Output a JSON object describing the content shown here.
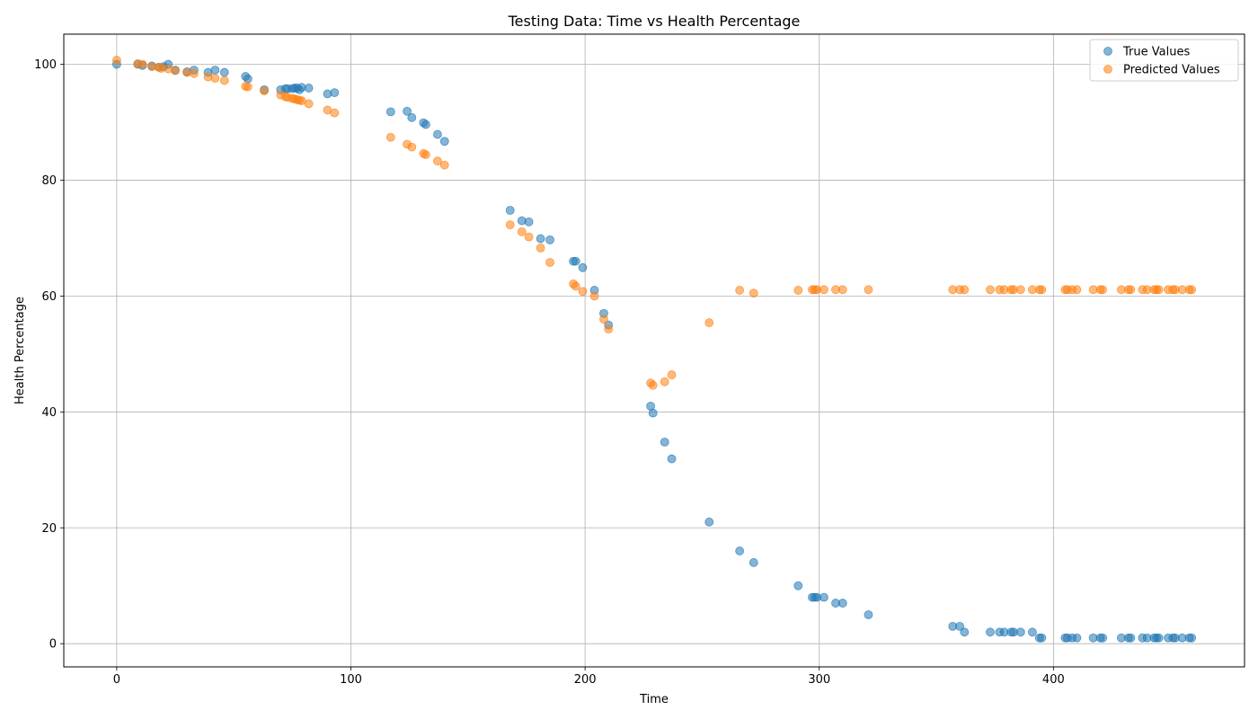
{
  "chart_data": {
    "type": "scatter",
    "title": "Testing Data: Time vs Health Percentage",
    "xlabel": "Time",
    "ylabel": "Health Percentage",
    "xlim": [
      -22.6,
      481.6
    ],
    "ylim": [
      -4,
      105.2
    ],
    "xticks": [
      0,
      100,
      200,
      300,
      400
    ],
    "yticks": [
      0,
      20,
      40,
      60,
      80,
      100
    ],
    "grid": true,
    "legend_position": "top-right",
    "series": [
      {
        "name": "True Values",
        "color": "#1f77b4",
        "points": [
          [
            0,
            100
          ],
          [
            9,
            100
          ],
          [
            11,
            99.8
          ],
          [
            15,
            99.7
          ],
          [
            18,
            99.5
          ],
          [
            20,
            99.6
          ],
          [
            22,
            100
          ],
          [
            25,
            99
          ],
          [
            30,
            98.7
          ],
          [
            33,
            99
          ],
          [
            39,
            98.6
          ],
          [
            42,
            99
          ],
          [
            46,
            98.6
          ],
          [
            55,
            97.9
          ],
          [
            56,
            97.5
          ],
          [
            63,
            95.6
          ],
          [
            70,
            95.6
          ],
          [
            72,
            95.8
          ],
          [
            73,
            95.8
          ],
          [
            75,
            95.8
          ],
          [
            76,
            95.9
          ],
          [
            77,
            95.9
          ],
          [
            78,
            95.6
          ],
          [
            79,
            96
          ],
          [
            82,
            95.9
          ],
          [
            90,
            94.9
          ],
          [
            93,
            95.1
          ],
          [
            117,
            91.8
          ],
          [
            124,
            91.9
          ],
          [
            126,
            90.8
          ],
          [
            131,
            89.9
          ],
          [
            132,
            89.6
          ],
          [
            137,
            87.9
          ],
          [
            140,
            86.7
          ],
          [
            168,
            74.8
          ],
          [
            173,
            73
          ],
          [
            176,
            72.8
          ],
          [
            181,
            69.9
          ],
          [
            185,
            69.7
          ],
          [
            195,
            66
          ],
          [
            196,
            66
          ],
          [
            199,
            64.9
          ],
          [
            204,
            61
          ],
          [
            208,
            57
          ],
          [
            210,
            55
          ],
          [
            228,
            41
          ],
          [
            229,
            39.8
          ],
          [
            234,
            34.8
          ],
          [
            237,
            31.9
          ],
          [
            253,
            21
          ],
          [
            266,
            16
          ],
          [
            272,
            14
          ],
          [
            291,
            10
          ],
          [
            297,
            8
          ],
          [
            298,
            8
          ],
          [
            299,
            8
          ],
          [
            302,
            8
          ],
          [
            307,
            7
          ],
          [
            310,
            7
          ],
          [
            321,
            5
          ],
          [
            357,
            3
          ],
          [
            360,
            3
          ],
          [
            362,
            2
          ],
          [
            373,
            2
          ],
          [
            377,
            2
          ],
          [
            379,
            2
          ],
          [
            382,
            2
          ],
          [
            383,
            2
          ],
          [
            386,
            2
          ],
          [
            391,
            2
          ],
          [
            394,
            1
          ],
          [
            395,
            1
          ],
          [
            405,
            1
          ],
          [
            406,
            1
          ],
          [
            408,
            1
          ],
          [
            410,
            1
          ],
          [
            417,
            1
          ],
          [
            420,
            1
          ],
          [
            421,
            1
          ],
          [
            429,
            1
          ],
          [
            432,
            1
          ],
          [
            433,
            1
          ],
          [
            438,
            1
          ],
          [
            440,
            1
          ],
          [
            443,
            1
          ],
          [
            444,
            1
          ],
          [
            445,
            1
          ],
          [
            449,
            1
          ],
          [
            451,
            1
          ],
          [
            452,
            1
          ],
          [
            455,
            1
          ],
          [
            458,
            1
          ],
          [
            459,
            1
          ]
        ]
      },
      {
        "name": "Predicted Values",
        "color": "#ff7f0e",
        "points": [
          [
            0,
            100.7
          ],
          [
            9,
            100.1
          ],
          [
            11,
            100
          ],
          [
            15,
            99.6
          ],
          [
            18,
            99.5
          ],
          [
            19,
            99.3
          ],
          [
            22,
            99.2
          ],
          [
            25,
            98.9
          ],
          [
            30,
            98.6
          ],
          [
            33,
            98.4
          ],
          [
            39,
            97.8
          ],
          [
            42,
            97.6
          ],
          [
            46,
            97.2
          ],
          [
            55,
            96.2
          ],
          [
            56,
            96.1
          ],
          [
            63,
            95.4
          ],
          [
            70,
            94.7
          ],
          [
            72,
            94.4
          ],
          [
            73,
            94.3
          ],
          [
            75,
            94.1
          ],
          [
            76,
            94
          ],
          [
            77,
            93.9
          ],
          [
            78,
            93.8
          ],
          [
            79,
            93.7
          ],
          [
            82,
            93.2
          ],
          [
            90,
            92.1
          ],
          [
            93,
            91.6
          ],
          [
            117,
            87.4
          ],
          [
            124,
            86.2
          ],
          [
            126,
            85.7
          ],
          [
            131,
            84.6
          ],
          [
            132,
            84.4
          ],
          [
            137,
            83.3
          ],
          [
            140,
            82.6
          ],
          [
            168,
            72.3
          ],
          [
            173,
            71.1
          ],
          [
            176,
            70.2
          ],
          [
            181,
            68.3
          ],
          [
            185,
            65.8
          ],
          [
            195,
            62.1
          ],
          [
            196,
            61.7
          ],
          [
            199,
            60.8
          ],
          [
            204,
            60
          ],
          [
            208,
            56
          ],
          [
            210,
            54.3
          ],
          [
            228,
            45
          ],
          [
            229,
            44.6
          ],
          [
            234,
            45.2
          ],
          [
            237,
            46.4
          ],
          [
            253,
            55.4
          ],
          [
            266,
            61
          ],
          [
            272,
            60.5
          ],
          [
            291,
            61
          ],
          [
            297,
            61.1
          ],
          [
            298,
            61.1
          ],
          [
            299,
            61.1
          ],
          [
            302,
            61.1
          ],
          [
            307,
            61.1
          ],
          [
            310,
            61.1
          ],
          [
            321,
            61.1
          ],
          [
            357,
            61.1
          ],
          [
            360,
            61.1
          ],
          [
            362,
            61.1
          ],
          [
            373,
            61.1
          ],
          [
            377,
            61.1
          ],
          [
            379,
            61.1
          ],
          [
            382,
            61.1
          ],
          [
            383,
            61.1
          ],
          [
            386,
            61.1
          ],
          [
            391,
            61.1
          ],
          [
            394,
            61.1
          ],
          [
            395,
            61.1
          ],
          [
            405,
            61.1
          ],
          [
            406,
            61.1
          ],
          [
            408,
            61.1
          ],
          [
            410,
            61.1
          ],
          [
            417,
            61.1
          ],
          [
            420,
            61.1
          ],
          [
            421,
            61.1
          ],
          [
            429,
            61.1
          ],
          [
            432,
            61.1
          ],
          [
            433,
            61.1
          ],
          [
            438,
            61.1
          ],
          [
            440,
            61.1
          ],
          [
            443,
            61.1
          ],
          [
            444,
            61.1
          ],
          [
            445,
            61.1
          ],
          [
            449,
            61.1
          ],
          [
            451,
            61.1
          ],
          [
            452,
            61.1
          ],
          [
            455,
            61.1
          ],
          [
            458,
            61.1
          ],
          [
            459,
            61.1
          ]
        ]
      }
    ]
  }
}
